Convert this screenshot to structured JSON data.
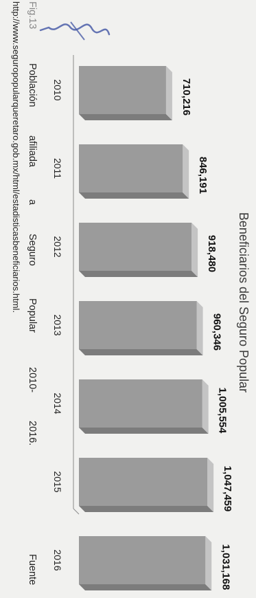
{
  "chart_data": {
    "type": "bar",
    "title": "Beneficiarios del Seguro Popular",
    "xlabel": "",
    "ylabel": "",
    "categories": [
      "2010",
      "2011",
      "2012",
      "2013",
      "2014",
      "2015",
      "2016"
    ],
    "values": [
      710216,
      846191,
      918480,
      960346,
      1005554,
      1047459,
      1031168
    ],
    "value_labels": [
      "710,216",
      "846,191",
      "918,480",
      "960,346",
      "1,005,554",
      "1,047,459",
      "1,031,168"
    ],
    "grid": false,
    "legend": "none",
    "bar_color": "#9b9b9b"
  },
  "caption": {
    "fig_label": "Fig.13",
    "words": [
      "Población",
      "afiliada",
      "a",
      "Seguro",
      "Popular",
      "2010-",
      "2016.",
      "Fuente"
    ],
    "url": "http://www.seguropopularqueretaro.gob.mx/html/estadisticasbeneficiarios.html."
  }
}
